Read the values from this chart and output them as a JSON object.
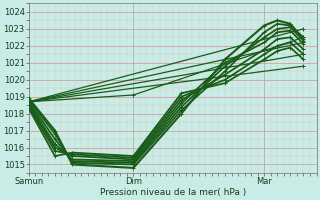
{
  "xlabel": "Pression niveau de la mer( hPa )",
  "xtick_labels": [
    "Samun",
    "Dim",
    "Mar"
  ],
  "xtick_positions": [
    0.0,
    96.0,
    216.0
  ],
  "xlim": [
    0,
    264
  ],
  "ylim": [
    1014.5,
    1024.5
  ],
  "yticks": [
    1015,
    1016,
    1017,
    1018,
    1019,
    1020,
    1021,
    1022,
    1023,
    1024
  ],
  "bg_color": "#c8ede6",
  "grid_color_major": "#d4a0a0",
  "grid_color_minor": "#e0c0c0",
  "line_color": "#1a5c1a",
  "lines": [
    {
      "x": [
        0,
        24,
        40,
        96,
        140,
        180,
        216,
        228,
        240,
        252
      ],
      "y": [
        1018.8,
        1016.8,
        1015.1,
        1015.0,
        1018.2,
        1020.5,
        1022.8,
        1023.3,
        1023.2,
        1022.5
      ],
      "lw": 1.3
    },
    {
      "x": [
        0,
        24,
        40,
        96,
        140,
        180,
        216,
        228,
        240,
        252
      ],
      "y": [
        1018.7,
        1016.5,
        1015.2,
        1015.1,
        1018.4,
        1020.8,
        1022.5,
        1023.0,
        1023.1,
        1022.3
      ],
      "lw": 1.3
    },
    {
      "x": [
        0,
        24,
        40,
        96,
        140,
        180,
        216,
        228,
        240,
        252
      ],
      "y": [
        1018.6,
        1016.2,
        1015.3,
        1015.2,
        1018.6,
        1021.0,
        1022.2,
        1022.8,
        1022.9,
        1022.1
      ],
      "lw": 1.3
    },
    {
      "x": [
        0,
        24,
        40,
        96,
        140,
        180,
        216,
        228,
        240,
        252
      ],
      "y": [
        1018.5,
        1016.0,
        1015.5,
        1015.3,
        1018.8,
        1020.3,
        1021.8,
        1022.4,
        1022.5,
        1021.8
      ],
      "lw": 1.3
    },
    {
      "x": [
        0,
        24,
        40,
        96,
        140,
        180,
        216,
        228,
        240,
        252
      ],
      "y": [
        1018.4,
        1015.8,
        1015.6,
        1015.4,
        1019.0,
        1020.0,
        1021.5,
        1022.0,
        1022.2,
        1021.5
      ],
      "lw": 1.3
    },
    {
      "x": [
        0,
        24,
        40,
        96,
        140,
        180,
        216,
        228,
        240,
        252
      ],
      "y": [
        1018.3,
        1015.5,
        1015.7,
        1015.5,
        1019.2,
        1019.8,
        1021.2,
        1021.7,
        1021.9,
        1021.2
      ],
      "lw": 1.3
    },
    {
      "x": [
        0,
        24,
        40,
        96,
        140,
        180,
        216,
        228,
        240,
        252
      ],
      "y": [
        1018.9,
        1017.0,
        1015.0,
        1014.8,
        1018.0,
        1021.2,
        1023.2,
        1023.5,
        1023.3,
        1022.4
      ],
      "lw": 1.5
    },
    {
      "x": [
        0,
        252
      ],
      "y": [
        1018.7,
        1022.2
      ],
      "lw": 0.9
    },
    {
      "x": [
        0,
        252
      ],
      "y": [
        1018.7,
        1023.0
      ],
      "lw": 0.9
    },
    {
      "x": [
        0,
        252
      ],
      "y": [
        1018.7,
        1021.5
      ],
      "lw": 0.9
    },
    {
      "x": [
        0,
        252
      ],
      "y": [
        1018.7,
        1020.8
      ],
      "lw": 0.9
    },
    {
      "x": [
        0,
        96,
        252
      ],
      "y": [
        1018.7,
        1019.1,
        1022.5
      ],
      "lw": 0.9
    }
  ],
  "figsize": [
    3.2,
    2.0
  ],
  "dpi": 100
}
